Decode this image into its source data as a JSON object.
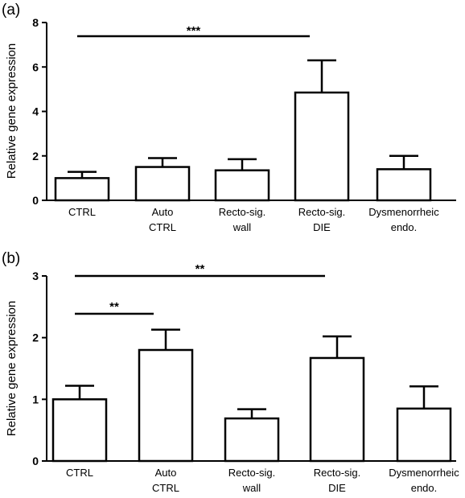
{
  "chart_data": [
    {
      "type": "bar",
      "panel_label": "(a)",
      "ylabel": "Relative gene expression",
      "xlabel": "",
      "ylim": [
        0,
        8
      ],
      "yticks": [
        0,
        2,
        4,
        6,
        8
      ],
      "categories": [
        [
          "CTRL"
        ],
        [
          "Auto",
          "CTRL"
        ],
        [
          "Recto-sig.",
          "wall"
        ],
        [
          "Recto-sig.",
          "DIE"
        ],
        [
          "Dysmenorrheic",
          "endo."
        ]
      ],
      "values": [
        1.0,
        1.5,
        1.35,
        4.85,
        1.4
      ],
      "errors": [
        0.28,
        0.4,
        0.5,
        1.45,
        0.6
      ],
      "bar_fill": "#ffffff",
      "bar_stroke": "#000000",
      "significance": [
        {
          "from": 0,
          "to": 3,
          "label": "***"
        }
      ]
    },
    {
      "type": "bar",
      "panel_label": "(b)",
      "ylabel": "Relative gene expression",
      "xlabel": "",
      "ylim": [
        0,
        3
      ],
      "yticks": [
        0,
        1,
        2,
        3
      ],
      "categories": [
        [
          "CTRL"
        ],
        [
          "Auto",
          "CTRL"
        ],
        [
          "Recto-sig.",
          "wall"
        ],
        [
          "Recto-sig.",
          "DIE"
        ],
        [
          "Dysmenorrheic",
          "endo."
        ]
      ],
      "values": [
        1.0,
        1.8,
        0.69,
        1.67,
        0.85
      ],
      "errors": [
        0.22,
        0.33,
        0.15,
        0.35,
        0.36
      ],
      "bar_fill": "#ffffff",
      "bar_stroke": "#000000",
      "significance": [
        {
          "from": 0,
          "to": 3,
          "label": "**"
        },
        {
          "from": 0,
          "to": 1,
          "label": "**"
        }
      ]
    }
  ]
}
